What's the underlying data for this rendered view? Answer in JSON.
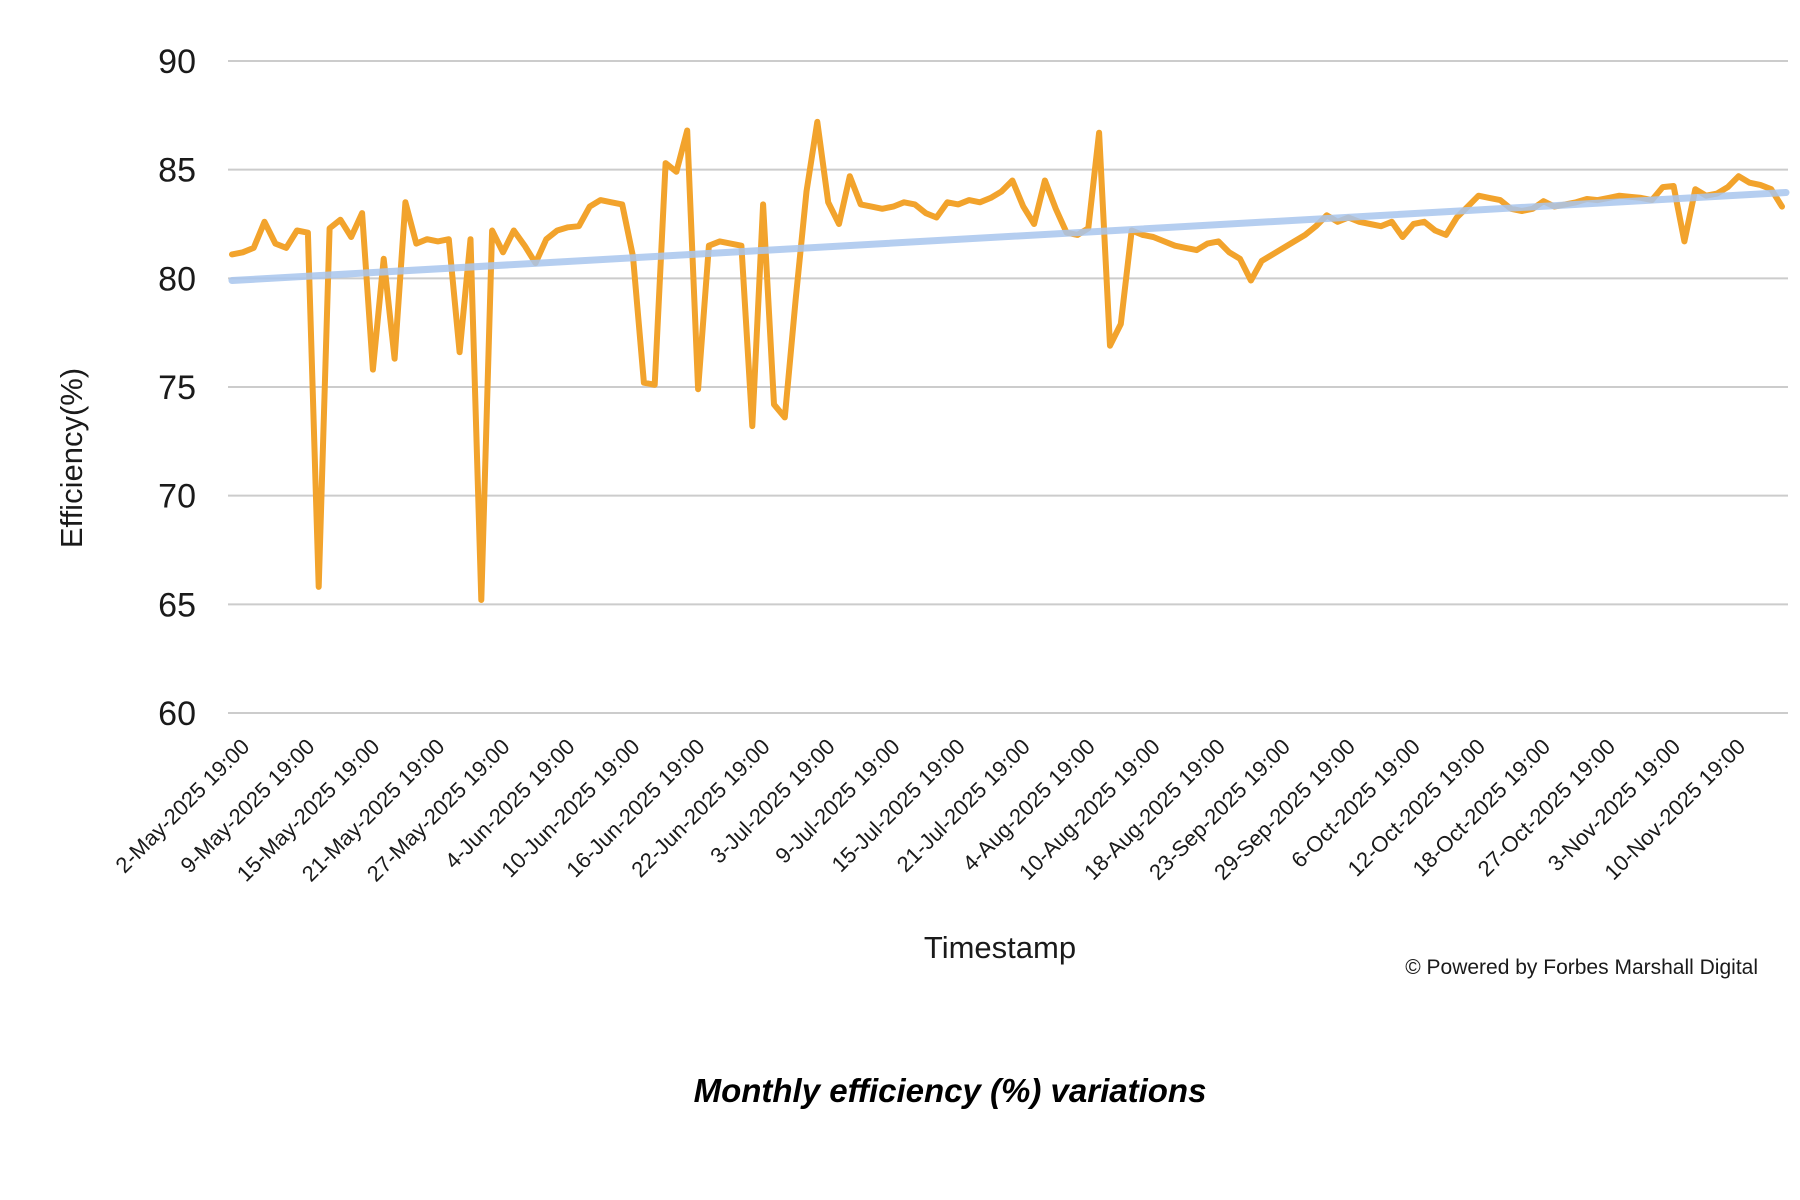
{
  "chart_data": {
    "type": "line",
    "title": "Monthly efficiency (%) variations",
    "xlabel": "Timestamp",
    "ylabel": "Efficiency(%)",
    "ylim": [
      60,
      90
    ],
    "yticks": [
      90,
      85,
      80,
      75,
      70,
      65,
      60
    ],
    "grid": "horizontal-only",
    "legend": "none",
    "x_tick_labels": [
      "2-May-2025 19:00",
      "9-May-2025 19:00",
      "15-May-2025 19:00",
      "21-May-2025 19:00",
      "27-May-2025 19:00",
      "4-Jun-2025 19:00",
      "10-Jun-2025 19:00",
      "16-Jun-2025 19:00",
      "22-Jun-2025 19:00",
      "3-Jul-2025 19:00",
      "9-Jul-2025 19:00",
      "15-Jul-2025 19:00",
      "21-Jul-2025 19:00",
      "4-Aug-2025 19:00",
      "10-Aug-2025 19:00",
      "18-Aug-2025 19:00",
      "23-Sep-2025 19:00",
      "29-Sep-2025 19:00",
      "6-Oct-2025 19:00",
      "12-Oct-2025 19:00",
      "18-Oct-2025 19:00",
      "27-Oct-2025 19:00",
      "3-Nov-2025 19:00",
      "10-Nov-2025 19:00"
    ],
    "x_tick_start_index": 1,
    "x_tick_every": 6,
    "series": [
      {
        "name": "efficiency",
        "color": "#F2A32C",
        "stroke_width": 6,
        "values": [
          81.1,
          81.2,
          81.4,
          82.6,
          81.6,
          81.4,
          82.2,
          82.1,
          65.8,
          82.3,
          82.7,
          81.9,
          83.0,
          75.8,
          80.9,
          76.3,
          83.5,
          81.6,
          81.8,
          81.7,
          81.8,
          76.6,
          81.8,
          65.2,
          82.2,
          81.2,
          82.2,
          81.5,
          80.7,
          81.8,
          82.2,
          82.35,
          82.4,
          83.3,
          83.6,
          83.5,
          83.4,
          81.0,
          75.2,
          75.1,
          85.3,
          84.9,
          86.8,
          74.9,
          81.5,
          81.7,
          81.6,
          81.5,
          73.2,
          83.4,
          74.2,
          73.6,
          79.0,
          84.0,
          87.2,
          83.5,
          82.5,
          84.7,
          83.4,
          83.3,
          83.2,
          83.3,
          83.5,
          83.4,
          83.0,
          82.8,
          83.5,
          83.4,
          83.6,
          83.5,
          83.7,
          84.0,
          84.5,
          83.3,
          82.5,
          84.5,
          83.2,
          82.1,
          82.0,
          82.3,
          86.7,
          76.9,
          77.9,
          82.2,
          82.0,
          81.9,
          81.7,
          81.5,
          81.4,
          81.3,
          81.6,
          81.7,
          81.2,
          80.9,
          79.9,
          80.8,
          81.1,
          81.4,
          81.7,
          82.0,
          82.4,
          82.9,
          82.6,
          82.8,
          82.6,
          82.5,
          82.4,
          82.6,
          81.9,
          82.5,
          82.6,
          82.2,
          82.0,
          82.8,
          83.3,
          83.8,
          83.7,
          83.6,
          83.2,
          83.1,
          83.2,
          83.55,
          83.3,
          83.4,
          83.5,
          83.65,
          83.6,
          83.7,
          83.8,
          83.75,
          83.7,
          83.6,
          84.2,
          84.25,
          81.7,
          84.1,
          83.8,
          83.9,
          84.2,
          84.7,
          84.4,
          84.3,
          84.1,
          83.3
        ]
      },
      {
        "name": "trend",
        "color": "#A9C6EE",
        "stroke_width": 7,
        "trend_endpoints": [
          79.9,
          83.95
        ]
      }
    ]
  },
  "footer": {
    "copyright": "© Powered by Forbes Marshall Digital",
    "caption": "Monthly efficiency (%) variations"
  },
  "colors": {
    "grid": "#CCCCCC",
    "text": "#1A1A1A",
    "background": "#FFFFFF"
  }
}
